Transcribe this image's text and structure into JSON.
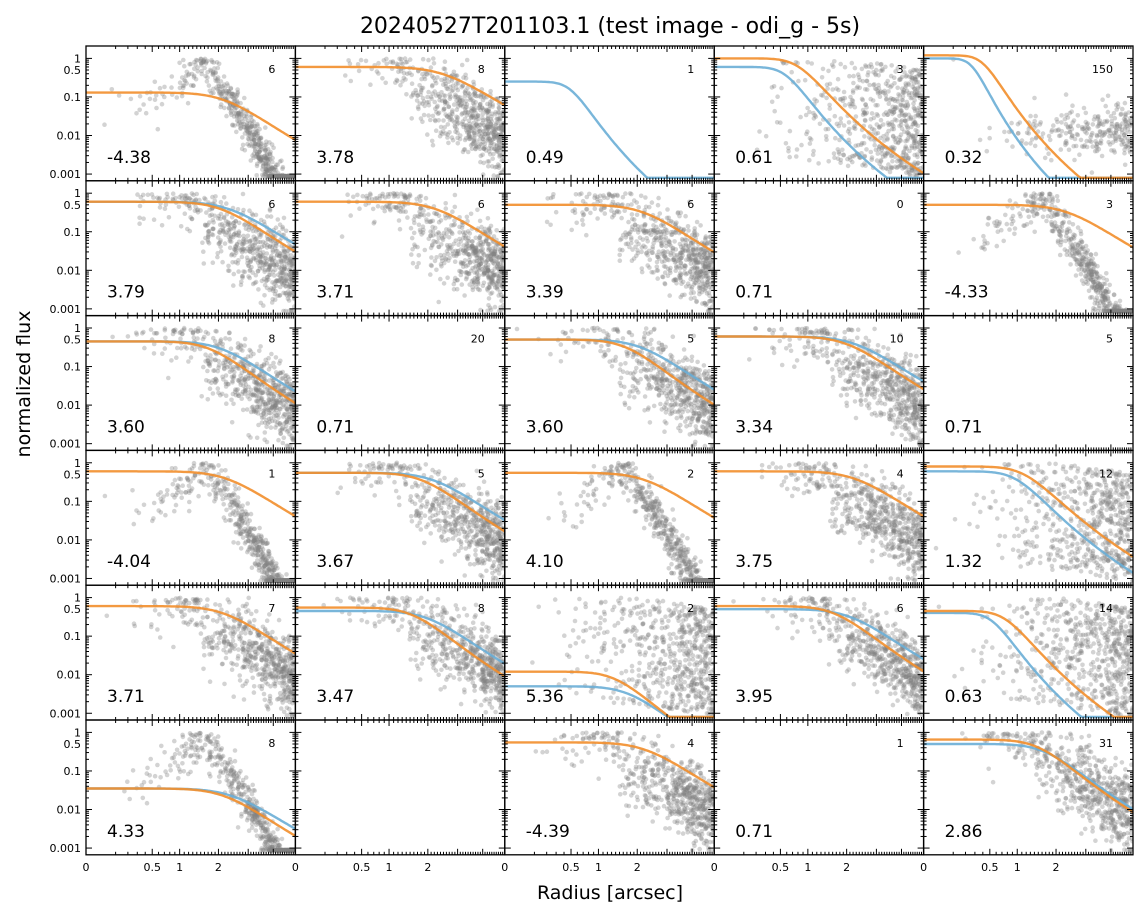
{
  "chart_data": {
    "type": "scatter",
    "title": "20240527T201103.1 (test image - odi_g - 5s)",
    "xlabel": "Radius [arcsec]",
    "ylabel": "normalized flux",
    "x_scale": "sqrt",
    "y_scale": "log",
    "xlim": [
      0,
      5
    ],
    "ylim": [
      0.0008,
      1.3
    ],
    "x_ticks": [
      0,
      0.5,
      1,
      2
    ],
    "x_tick_labels": [
      "0",
      "0.5",
      "1",
      "2"
    ],
    "y_ticks": [
      1,
      0.5,
      0.1,
      0.01,
      0.001
    ],
    "y_tick_labels": [
      "1",
      "0.5",
      "0.1",
      "0.01",
      "0.001"
    ],
    "grid": false,
    "colors": {
      "points": "#808080",
      "fit_blue": "#6aaed6",
      "fit_orange": "#f28e2b"
    },
    "panels": [
      {
        "count": "6",
        "value": "-4.38",
        "scatter": "bump",
        "blue": null,
        "orange": [
          0.13,
          2.5
        ]
      },
      {
        "count": "8",
        "value": "3.78",
        "scatter": "plateau",
        "blue": null,
        "orange": [
          0.6,
          2.9
        ]
      },
      {
        "count": "1",
        "value": "0.49",
        "scatter": "none",
        "blue": [
          0.25,
          0.55
        ],
        "orange": null
      },
      {
        "count": "3",
        "value": "0.61",
        "scatter": "wide",
        "blue": [
          0.6,
          0.65
        ],
        "orange": [
          1.0,
          0.9
        ]
      },
      {
        "count": "150",
        "value": "0.32",
        "scatter": "sparse",
        "blue": [
          1.0,
          0.3
        ],
        "orange": [
          1.2,
          0.45
        ]
      },
      {
        "count": "6",
        "value": "3.79",
        "scatter": "plateau",
        "blue": [
          0.6,
          2.7
        ],
        "orange": [
          0.6,
          2.4
        ]
      },
      {
        "count": "6",
        "value": "3.71",
        "scatter": "plateau",
        "blue": null,
        "orange": [
          0.6,
          2.6
        ]
      },
      {
        "count": "6",
        "value": "3.39",
        "scatter": "plateau",
        "blue": null,
        "orange": [
          0.5,
          2.5
        ]
      },
      {
        "count": "0",
        "value": "0.71",
        "scatter": "none",
        "blue": null,
        "orange": null
      },
      {
        "count": "3",
        "value": "-4.33",
        "scatter": "bump",
        "blue": null,
        "orange": [
          0.5,
          2.7
        ]
      },
      {
        "count": "8",
        "value": "3.60",
        "scatter": "plateau",
        "blue": [
          0.45,
          2.4
        ],
        "orange": [
          0.45,
          2.0
        ]
      },
      {
        "count": "20",
        "value": "0.71",
        "scatter": "none",
        "blue": null,
        "orange": null
      },
      {
        "count": "5",
        "value": "3.60",
        "scatter": "plateau",
        "blue": [
          0.5,
          2.4
        ],
        "orange": [
          0.5,
          1.9
        ]
      },
      {
        "count": "10",
        "value": "3.34",
        "scatter": "plateau",
        "blue": [
          0.6,
          2.6
        ],
        "orange": [
          0.6,
          2.3
        ]
      },
      {
        "count": "5",
        "value": "0.71",
        "scatter": "none",
        "blue": null,
        "orange": null
      },
      {
        "count": "1",
        "value": "-4.04",
        "scatter": "bump",
        "blue": null,
        "orange": [
          0.6,
          2.6
        ]
      },
      {
        "count": "5",
        "value": "3.67",
        "scatter": "plateau",
        "blue": [
          0.55,
          2.5
        ],
        "orange": [
          0.55,
          2.1
        ]
      },
      {
        "count": "2",
        "value": "4.10",
        "scatter": "bump",
        "blue": null,
        "orange": [
          0.55,
          2.6
        ]
      },
      {
        "count": "4",
        "value": "3.75",
        "scatter": "plateau",
        "blue": null,
        "orange": [
          0.6,
          2.6
        ]
      },
      {
        "count": "12",
        "value": "1.32",
        "scatter": "wide",
        "blue": [
          0.6,
          1.1
        ],
        "orange": [
          0.8,
          1.3
        ]
      },
      {
        "count": "7",
        "value": "3.71",
        "scatter": "plateau",
        "blue": null,
        "orange": [
          0.6,
          2.5
        ]
      },
      {
        "count": "8",
        "value": "3.47",
        "scatter": "plateau",
        "blue": [
          0.45,
          2.3
        ],
        "orange": [
          0.55,
          1.8
        ]
      },
      {
        "count": "2",
        "value": "5.36",
        "scatter": "wide",
        "blue": [
          0.005,
          2.0
        ],
        "orange": [
          0.012,
          1.6
        ]
      },
      {
        "count": "6",
        "value": "3.95",
        "scatter": "plateau",
        "blue": [
          0.5,
          2.4
        ],
        "orange": [
          0.6,
          1.9
        ]
      },
      {
        "count": "14",
        "value": "0.63",
        "scatter": "wide",
        "blue": [
          0.4,
          0.6
        ],
        "orange": [
          0.45,
          0.85
        ]
      },
      {
        "count": "8",
        "value": "4.33",
        "scatter": "bump",
        "blue": [
          0.035,
          2.8
        ],
        "orange": [
          0.035,
          2.5
        ]
      },
      {
        "count": "",
        "value": "",
        "scatter": "none",
        "blue": null,
        "orange": null
      },
      {
        "count": "4",
        "value": "-4.39",
        "scatter": "plateau",
        "blue": null,
        "orange": [
          0.55,
          2.6
        ]
      },
      {
        "count": "1",
        "value": "0.71",
        "scatter": "none",
        "blue": null,
        "orange": null
      },
      {
        "count": "31",
        "value": "2.86",
        "scatter": "plateau",
        "blue": [
          0.5,
          1.9
        ],
        "orange": [
          0.65,
          1.7
        ]
      }
    ]
  }
}
